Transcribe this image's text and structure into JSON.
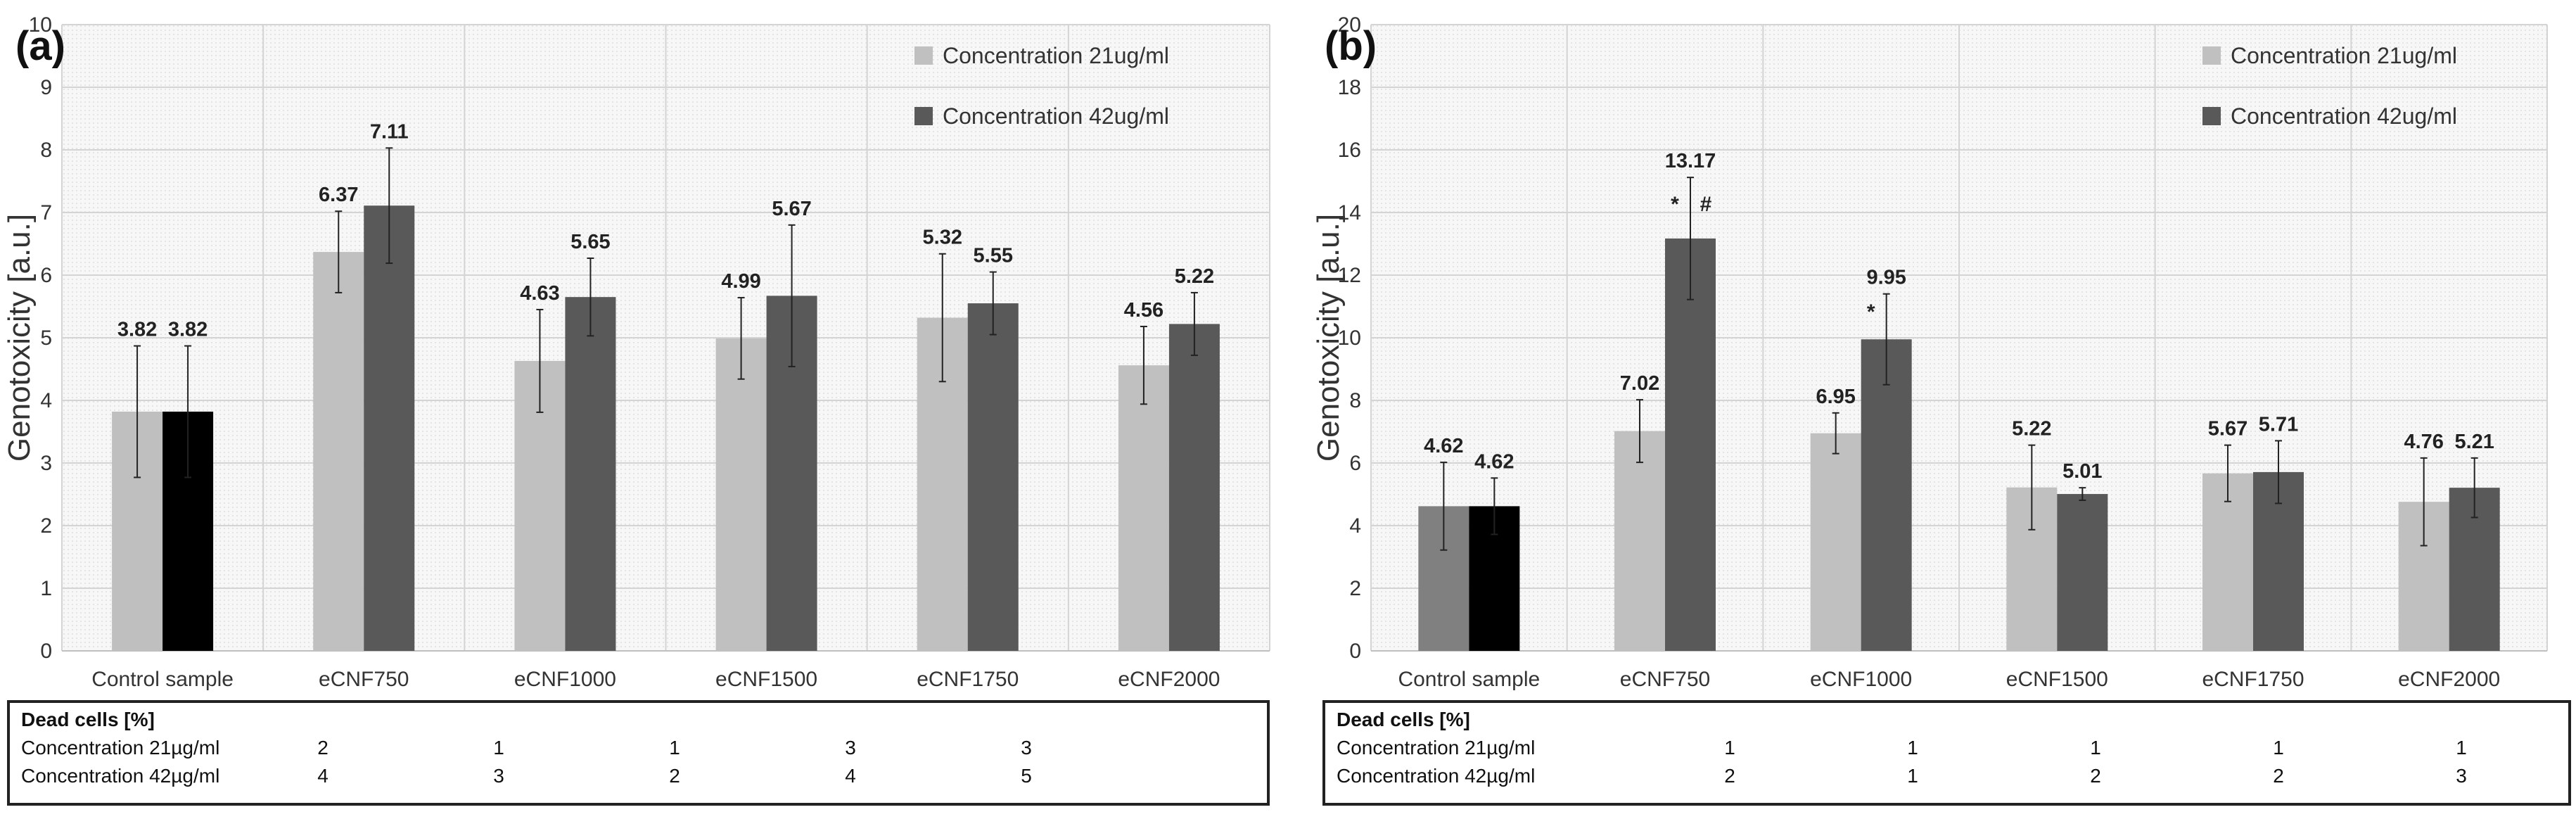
{
  "panels": [
    {
      "panel_label": "(a)",
      "table": {
        "header": "Dead cells [%]",
        "rows": [
          {
            "label": "Concentration 21µg/ml",
            "values": [
              "2",
              "1",
              "1",
              "3",
              "3"
            ]
          },
          {
            "label": "Concentration 42µg/ml",
            "values": [
              "4",
              "3",
              "2",
              "4",
              "5"
            ]
          }
        ]
      }
    },
    {
      "panel_label": "(b)",
      "table": {
        "header": "Dead cells [%]",
        "rows": [
          {
            "label": "Concentration 21µg/ml",
            "values": [
              "1",
              "1",
              "1",
              "1",
              "1"
            ]
          },
          {
            "label": "Concentration 42µg/ml",
            "values": [
              "2",
              "1",
              "2",
              "2",
              "3"
            ]
          }
        ]
      }
    }
  ],
  "chart_data": [
    {
      "type": "bar",
      "title": "",
      "ylabel": "Genotoxicity [a.u.]",
      "xlabel": "",
      "ylim": [
        0,
        10
      ],
      "yticks": [
        0,
        1,
        2,
        3,
        4,
        5,
        6,
        7,
        8,
        9,
        10
      ],
      "categories": [
        "Control sample",
        "eCNF750",
        "eCNF1000",
        "eCNF1500",
        "eCNF1750",
        "eCNF2000"
      ],
      "series": [
        {
          "name": "Concentration 21ug/ml",
          "color": "#c0c0c0",
          "control_color": "#bfbfbf",
          "values": [
            3.82,
            6.37,
            4.63,
            4.99,
            5.32,
            4.56
          ],
          "errors": [
            1.05,
            0.65,
            0.82,
            0.65,
            1.02,
            0.62
          ]
        },
        {
          "name": "Concentration 42ug/ml",
          "color": "#595959",
          "control_color": "#000000",
          "values": [
            3.82,
            7.11,
            5.65,
            5.67,
            5.55,
            5.22
          ],
          "errors": [
            1.05,
            0.92,
            0.62,
            1.13,
            0.5,
            0.5
          ]
        }
      ],
      "labels": [
        [
          "3.82",
          "6.37",
          "4.63",
          "4.99",
          "5.32",
          "4.56"
        ],
        [
          "3.82",
          "7.11",
          "5.65",
          "5.67",
          "5.55",
          "5.22"
        ]
      ],
      "annotations": [],
      "legend_position": "top-right"
    },
    {
      "type": "bar",
      "title": "",
      "ylabel": "Genotoxicity [a.u.]",
      "xlabel": "",
      "ylim": [
        0,
        20
      ],
      "yticks": [
        0,
        2,
        4,
        6,
        8,
        10,
        12,
        14,
        16,
        18,
        20
      ],
      "categories": [
        "Control sample",
        "eCNF750",
        "eCNF1000",
        "eCNF1500",
        "eCNF1750",
        "eCNF2000"
      ],
      "series": [
        {
          "name": "Concentration 21ug/ml",
          "color": "#c0c0c0",
          "control_color": "#808080",
          "values": [
            4.62,
            7.02,
            6.95,
            5.22,
            5.67,
            4.76
          ],
          "errors": [
            1.4,
            1.0,
            0.65,
            1.35,
            0.9,
            1.4
          ]
        },
        {
          "name": "Concentration 42ug/ml",
          "color": "#595959",
          "control_color": "#000000",
          "values": [
            4.62,
            13.17,
            9.95,
            5.01,
            5.71,
            5.21
          ],
          "errors": [
            0.9,
            1.95,
            1.45,
            0.2,
            1.0,
            0.95
          ]
        }
      ],
      "labels": [
        [
          "4.62",
          "7.02",
          "6.95",
          "5.22",
          "5.67",
          "4.76"
        ],
        [
          "4.62",
          "13.17",
          "9.95",
          "5.01",
          "5.71",
          "5.21"
        ]
      ],
      "annotations": [
        {
          "category": 1,
          "series": 1,
          "text": "*",
          "side": "left"
        },
        {
          "category": 1,
          "series": 1,
          "text": "#",
          "side": "right"
        },
        {
          "category": 2,
          "series": 1,
          "text": "*",
          "side": "left"
        }
      ],
      "legend_position": "top-right"
    }
  ]
}
